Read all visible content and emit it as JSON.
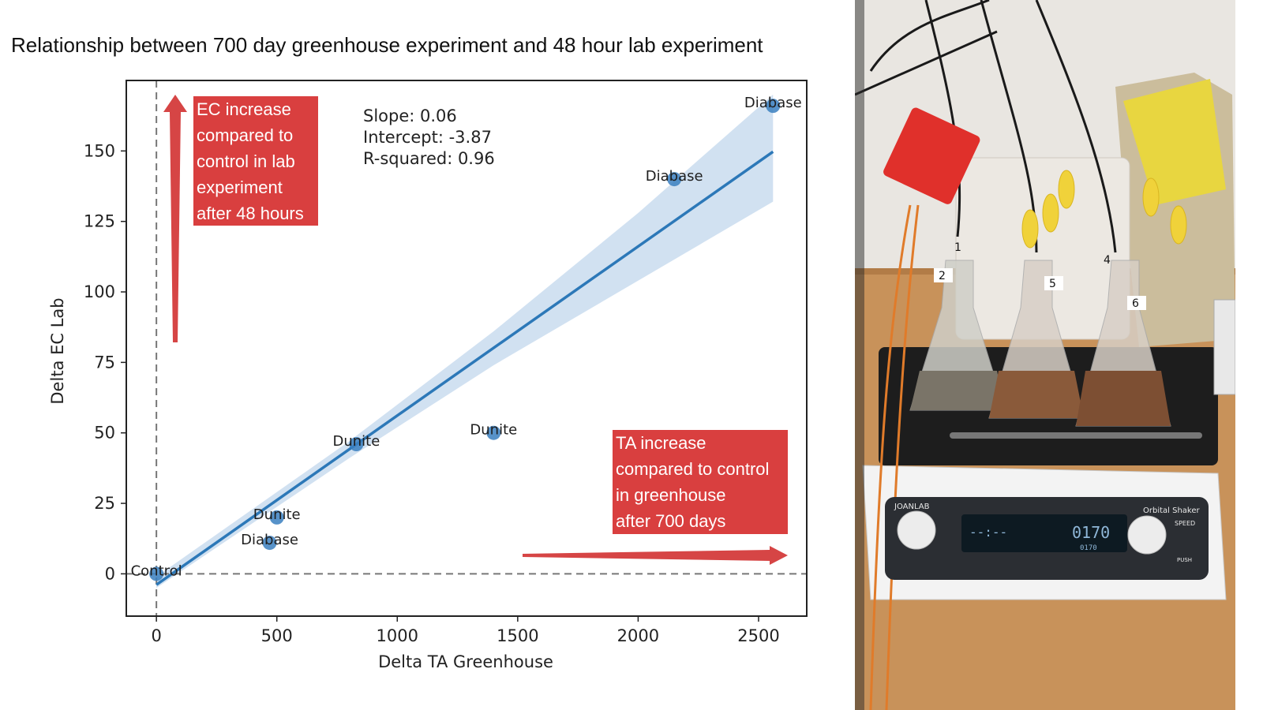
{
  "slide_title": "Relationship between 700 day greenhouse experiment and 48 hour lab experiment",
  "colors": {
    "point": "#3a7fbf",
    "line": "#2c78b8",
    "ci_band": "#c6daee",
    "callout": "#d93f3f",
    "arrow": "#d64545",
    "zero_line": "#777777"
  },
  "chart_data": {
    "type": "scatter",
    "title": "",
    "xlabel": "Delta TA Greenhouse",
    "ylabel": "Delta EC Lab",
    "xlim": [
      -125,
      2700
    ],
    "ylim": [
      -15,
      175
    ],
    "x_ticks": [
      0,
      500,
      1000,
      1500,
      2000,
      2500
    ],
    "y_ticks": [
      0,
      25,
      50,
      75,
      100,
      125,
      150
    ],
    "points": [
      {
        "x": 0,
        "y": 0,
        "label": "Control"
      },
      {
        "x": 470,
        "y": 11,
        "label": "Diabase"
      },
      {
        "x": 500,
        "y": 20,
        "label": "Dunite"
      },
      {
        "x": 830,
        "y": 46,
        "label": "Dunite"
      },
      {
        "x": 1400,
        "y": 50,
        "label": "Dunite"
      },
      {
        "x": 2150,
        "y": 140,
        "label": "Diabase"
      },
      {
        "x": 2560,
        "y": 166,
        "label": "Diabase"
      }
    ],
    "regression": {
      "slope": 0.06,
      "intercept": -3.87,
      "r_squared": 0.96,
      "x_range": [
        0,
        2560
      ],
      "ci_band": [
        {
          "x": 0,
          "lo": -5,
          "hi": -1
        },
        {
          "x": 800,
          "lo": 41,
          "hi": 47
        },
        {
          "x": 1400,
          "lo": 74,
          "hi": 86
        },
        {
          "x": 2000,
          "lo": 104,
          "hi": 128
        },
        {
          "x": 2560,
          "lo": 132,
          "hi": 170
        }
      ]
    },
    "stats_labels": [
      "Slope: 0.06",
      "Intercept: -3.87",
      "R-squared: 0.96"
    ],
    "zero_lines": {
      "x": 0,
      "y": 0
    },
    "annotations": [
      {
        "id": "ec",
        "lines": [
          "EC increase",
          "compared to",
          "control in lab",
          "experiment",
          "after 48 hours"
        ]
      },
      {
        "id": "ta",
        "lines": [
          "TA increase",
          "compared to control",
          "in greenhouse",
          "after 700 days"
        ]
      }
    ]
  },
  "photo": {
    "device_brand": "JOANLAB",
    "device_name": "Orbital Shaker",
    "speed_label": "SPEED",
    "display_speed": "0170",
    "display_speed_small": "0170",
    "display_time": "--:--",
    "push_label": "PUSH",
    "flask_labels": [
      "1",
      "2",
      "5",
      "4",
      "6"
    ]
  }
}
